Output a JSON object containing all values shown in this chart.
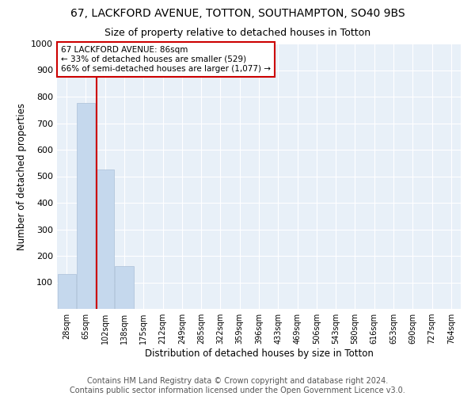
{
  "title1": "67, LACKFORD AVENUE, TOTTON, SOUTHAMPTON, SO40 9BS",
  "title2": "Size of property relative to detached houses in Totton",
  "xlabel": "Distribution of detached houses by size in Totton",
  "ylabel": "Number of detached properties",
  "categories": [
    "28sqm",
    "65sqm",
    "102sqm",
    "138sqm",
    "175sqm",
    "212sqm",
    "249sqm",
    "285sqm",
    "322sqm",
    "359sqm",
    "396sqm",
    "433sqm",
    "469sqm",
    "506sqm",
    "543sqm",
    "580sqm",
    "616sqm",
    "653sqm",
    "690sqm",
    "727sqm",
    "764sqm"
  ],
  "values": [
    130,
    775,
    525,
    160,
    0,
    0,
    0,
    0,
    0,
    0,
    0,
    0,
    0,
    0,
    0,
    0,
    0,
    0,
    0,
    0,
    0
  ],
  "bar_color": "#c5d8ed",
  "bar_edge_color": "#aac0d8",
  "annotation_line1": "67 LACKFORD AVENUE: 86sqm",
  "annotation_line2": "← 33% of detached houses are smaller (529)",
  "annotation_line3": "66% of semi-detached houses are larger (1,077) →",
  "vline_color": "#cc0000",
  "ylim": [
    0,
    1000
  ],
  "yticks": [
    100,
    200,
    300,
    400,
    500,
    600,
    700,
    800,
    900,
    1000
  ],
  "footer1": "Contains HM Land Registry data © Crown copyright and database right 2024.",
  "footer2": "Contains public sector information licensed under the Open Government Licence v3.0.",
  "bg_color": "#e8f0f8",
  "title1_fontsize": 10,
  "title2_fontsize": 9,
  "xlabel_fontsize": 8.5,
  "ylabel_fontsize": 8.5,
  "footer_fontsize": 7
}
